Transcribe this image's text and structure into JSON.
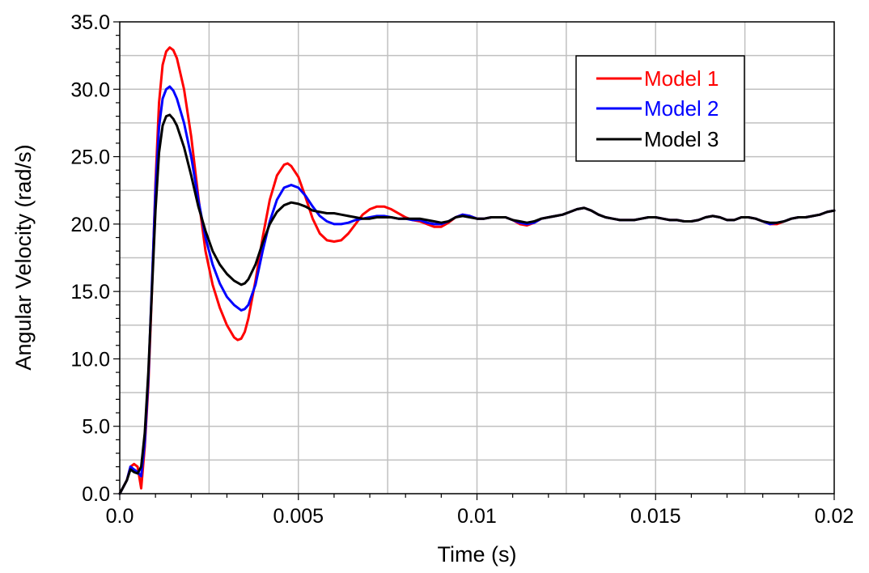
{
  "chart_data": {
    "type": "line",
    "title": "",
    "xlabel": "Time (s)",
    "ylabel": "Angular Velocity (rad/s)",
    "xlim": [
      0,
      0.02
    ],
    "ylim": [
      0,
      35
    ],
    "xticks": [
      0,
      0.005,
      0.01,
      0.015,
      0.02
    ],
    "xtick_labels": [
      "0.0",
      "0.005",
      "0.01",
      "0.015",
      "0.02"
    ],
    "yticks": [
      0,
      5,
      10,
      15,
      20,
      25,
      30,
      35
    ],
    "ytick_labels": [
      "0.0",
      "5.0",
      "10.0",
      "15.0",
      "20.0",
      "25.0",
      "30.0",
      "35.0"
    ],
    "grid": true,
    "legend_position": "top-right",
    "series": [
      {
        "name": "Model 1",
        "color": "#ff0000",
        "x": [
          0,
          0.0002,
          0.0003,
          0.0004,
          0.0005,
          0.0006,
          0.0007,
          0.0008,
          0.0009,
          0.001,
          0.0011,
          0.0012,
          0.0013,
          0.0014,
          0.0015,
          0.0016,
          0.0018,
          0.002,
          0.0022,
          0.0024,
          0.0026,
          0.0028,
          0.003,
          0.0032,
          0.0033,
          0.0034,
          0.0035,
          0.0036,
          0.0038,
          0.004,
          0.0042,
          0.0044,
          0.0046,
          0.0047,
          0.0048,
          0.005,
          0.0052,
          0.0054,
          0.0056,
          0.0058,
          0.006,
          0.0062,
          0.0064,
          0.0066,
          0.0068,
          0.007,
          0.0072,
          0.0074,
          0.0076,
          0.0078,
          0.008,
          0.0082,
          0.0084,
          0.0086,
          0.0088,
          0.009,
          0.0092,
          0.0094,
          0.0096,
          0.0098,
          0.01,
          0.0102,
          0.0104,
          0.0106,
          0.0108,
          0.011,
          0.0112,
          0.0114,
          0.0116,
          0.0118,
          0.012,
          0.0122,
          0.0124,
          0.0126,
          0.0128,
          0.013,
          0.0132,
          0.0134,
          0.0136,
          0.0138,
          0.014,
          0.0142,
          0.0144,
          0.0146,
          0.0148,
          0.015,
          0.0152,
          0.0154,
          0.0156,
          0.0158,
          0.016,
          0.0162,
          0.0164,
          0.0166,
          0.0168,
          0.017,
          0.0172,
          0.0174,
          0.0176,
          0.0178,
          0.018,
          0.0182,
          0.0184,
          0.0186,
          0.0188,
          0.019,
          0.0192,
          0.0194,
          0.0196,
          0.0198,
          0.02
        ],
        "y": [
          0,
          1.0,
          2.0,
          2.2,
          2.0,
          0.4,
          3.5,
          8.0,
          15.0,
          23.0,
          29.0,
          31.8,
          32.8,
          33.1,
          32.9,
          32.3,
          30.0,
          26.5,
          22.0,
          18.0,
          15.5,
          13.8,
          12.5,
          11.6,
          11.4,
          11.5,
          12.0,
          13.0,
          15.8,
          19.0,
          21.8,
          23.6,
          24.4,
          24.5,
          24.3,
          23.5,
          22.0,
          20.4,
          19.3,
          18.8,
          18.7,
          18.8,
          19.3,
          20.0,
          20.7,
          21.1,
          21.3,
          21.3,
          21.1,
          20.8,
          20.5,
          20.3,
          20.2,
          20.0,
          19.8,
          19.8,
          20.1,
          20.5,
          20.7,
          20.6,
          20.4,
          20.4,
          20.5,
          20.5,
          20.5,
          20.3,
          20.0,
          19.9,
          20.1,
          20.4,
          20.5,
          20.6,
          20.7,
          20.9,
          21.1,
          21.2,
          21.0,
          20.7,
          20.5,
          20.4,
          20.3,
          20.3,
          20.3,
          20.4,
          20.5,
          20.5,
          20.4,
          20.3,
          20.3,
          20.2,
          20.2,
          20.3,
          20.5,
          20.6,
          20.5,
          20.3,
          20.3,
          20.5,
          20.5,
          20.4,
          20.2,
          20.0,
          20.0,
          20.2,
          20.4,
          20.5,
          20.5,
          20.6,
          20.7,
          20.9,
          21.0
        ]
      },
      {
        "name": "Model 2",
        "color": "#0000ff",
        "x": [
          0,
          0.0002,
          0.0003,
          0.0004,
          0.0005,
          0.0006,
          0.0007,
          0.0008,
          0.0009,
          0.001,
          0.0011,
          0.0012,
          0.0013,
          0.0014,
          0.0015,
          0.0016,
          0.0018,
          0.002,
          0.0022,
          0.0024,
          0.0026,
          0.0028,
          0.003,
          0.0032,
          0.0034,
          0.0035,
          0.0036,
          0.0038,
          0.004,
          0.0042,
          0.0044,
          0.0046,
          0.0048,
          0.005,
          0.0052,
          0.0054,
          0.0056,
          0.0058,
          0.006,
          0.0062,
          0.0064,
          0.0066,
          0.0068,
          0.007,
          0.0072,
          0.0074,
          0.0076,
          0.0078,
          0.008,
          0.0082,
          0.0084,
          0.0086,
          0.0088,
          0.009,
          0.0092,
          0.0094,
          0.0096,
          0.0098,
          0.01,
          0.0102,
          0.0104,
          0.0106,
          0.0108,
          0.011,
          0.0112,
          0.0114,
          0.0116,
          0.0118,
          0.012,
          0.0122,
          0.0124,
          0.0126,
          0.0128,
          0.013,
          0.0132,
          0.0134,
          0.0136,
          0.0138,
          0.014,
          0.0142,
          0.0144,
          0.0146,
          0.0148,
          0.015,
          0.0152,
          0.0154,
          0.0156,
          0.0158,
          0.016,
          0.0162,
          0.0164,
          0.0166,
          0.0168,
          0.017,
          0.0172,
          0.0174,
          0.0176,
          0.0178,
          0.018,
          0.0182,
          0.0184,
          0.0186,
          0.0188,
          0.019,
          0.0192,
          0.0194,
          0.0196,
          0.0198,
          0.02
        ],
        "y": [
          0,
          1.0,
          2.0,
          1.8,
          1.6,
          1.3,
          3.8,
          8.5,
          15.5,
          22.5,
          27.2,
          29.3,
          30.0,
          30.2,
          29.9,
          29.3,
          27.5,
          25.0,
          21.8,
          19.0,
          17.0,
          15.6,
          14.6,
          14.0,
          13.6,
          13.7,
          14.0,
          15.5,
          18.0,
          20.2,
          21.8,
          22.7,
          22.9,
          22.7,
          22.1,
          21.3,
          20.6,
          20.2,
          20.0,
          20.0,
          20.1,
          20.3,
          20.4,
          20.5,
          20.6,
          20.6,
          20.5,
          20.4,
          20.4,
          20.3,
          20.3,
          20.1,
          20.0,
          20.0,
          20.2,
          20.5,
          20.7,
          20.6,
          20.4,
          20.4,
          20.5,
          20.5,
          20.5,
          20.3,
          20.1,
          20.0,
          20.1,
          20.4,
          20.5,
          20.6,
          20.7,
          20.9,
          21.1,
          21.2,
          21.0,
          20.7,
          20.5,
          20.4,
          20.3,
          20.3,
          20.3,
          20.4,
          20.5,
          20.5,
          20.4,
          20.3,
          20.3,
          20.2,
          20.2,
          20.3,
          20.5,
          20.6,
          20.5,
          20.3,
          20.3,
          20.5,
          20.5,
          20.4,
          20.2,
          20.0,
          20.1,
          20.2,
          20.4,
          20.5,
          20.5,
          20.6,
          20.7,
          20.9,
          21.0
        ]
      },
      {
        "name": "Model 3",
        "color": "#000000",
        "x": [
          0,
          0.0002,
          0.0003,
          0.0004,
          0.0005,
          0.0006,
          0.0007,
          0.0008,
          0.0009,
          0.001,
          0.0011,
          0.0012,
          0.0013,
          0.0014,
          0.0015,
          0.0016,
          0.0018,
          0.002,
          0.0022,
          0.0024,
          0.0026,
          0.0028,
          0.003,
          0.0032,
          0.0034,
          0.0035,
          0.0036,
          0.0038,
          0.004,
          0.0042,
          0.0044,
          0.0046,
          0.0048,
          0.005,
          0.0052,
          0.0054,
          0.0056,
          0.0058,
          0.006,
          0.0062,
          0.0064,
          0.0066,
          0.0068,
          0.007,
          0.0072,
          0.0074,
          0.0076,
          0.0078,
          0.008,
          0.0082,
          0.0084,
          0.0086,
          0.0088,
          0.009,
          0.0092,
          0.0094,
          0.0096,
          0.0098,
          0.01,
          0.0102,
          0.0104,
          0.0106,
          0.0108,
          0.011,
          0.0112,
          0.0114,
          0.0116,
          0.0118,
          0.012,
          0.0122,
          0.0124,
          0.0126,
          0.0128,
          0.013,
          0.0132,
          0.0134,
          0.0136,
          0.0138,
          0.014,
          0.0142,
          0.0144,
          0.0146,
          0.0148,
          0.015,
          0.0152,
          0.0154,
          0.0156,
          0.0158,
          0.016,
          0.0162,
          0.0164,
          0.0166,
          0.0168,
          0.017,
          0.0172,
          0.0174,
          0.0176,
          0.0178,
          0.018,
          0.0182,
          0.0184,
          0.0186,
          0.0188,
          0.019,
          0.0192,
          0.0194,
          0.0196,
          0.0198,
          0.02
        ],
        "y": [
          0,
          1.0,
          1.8,
          1.6,
          1.5,
          2.0,
          4.5,
          9.0,
          15.0,
          21.0,
          25.3,
          27.3,
          28.0,
          28.1,
          27.8,
          27.3,
          25.7,
          23.6,
          21.3,
          19.5,
          18.0,
          17.0,
          16.3,
          15.8,
          15.5,
          15.6,
          15.9,
          17.0,
          18.6,
          20.0,
          20.9,
          21.4,
          21.6,
          21.5,
          21.3,
          21.0,
          20.9,
          20.8,
          20.8,
          20.7,
          20.6,
          20.5,
          20.4,
          20.4,
          20.5,
          20.5,
          20.5,
          20.4,
          20.4,
          20.4,
          20.4,
          20.3,
          20.2,
          20.1,
          20.2,
          20.5,
          20.6,
          20.5,
          20.4,
          20.4,
          20.5,
          20.5,
          20.5,
          20.3,
          20.2,
          20.1,
          20.2,
          20.4,
          20.5,
          20.6,
          20.7,
          20.9,
          21.1,
          21.2,
          21.0,
          20.7,
          20.5,
          20.4,
          20.3,
          20.3,
          20.3,
          20.4,
          20.5,
          20.5,
          20.4,
          20.3,
          20.3,
          20.2,
          20.2,
          20.3,
          20.5,
          20.6,
          20.5,
          20.3,
          20.3,
          20.5,
          20.5,
          20.4,
          20.2,
          20.1,
          20.1,
          20.2,
          20.4,
          20.5,
          20.5,
          20.6,
          20.7,
          20.9,
          21.0
        ]
      }
    ]
  }
}
